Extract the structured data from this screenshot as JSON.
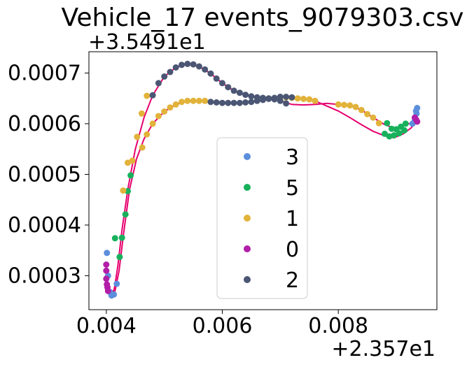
{
  "chart_data": {
    "type": "scatter",
    "title": "Vehicle_17 events_9079303.csv",
    "x_offset_label": "+2.357e1",
    "y_offset_label": "+3.5491e1",
    "xlabel": "",
    "ylabel": "",
    "xlim": [
      0.0037,
      0.0097
    ],
    "ylim": [
      0.000233,
      0.000742
    ],
    "xticks": [
      0.004,
      0.006,
      0.008
    ],
    "xtick_labels": [
      "0.004",
      "0.006",
      "0.008"
    ],
    "yticks": [
      0.0003,
      0.0004,
      0.0005,
      0.0006,
      0.0007
    ],
    "ytick_labels": [
      "0.0003",
      "0.0004",
      "0.0005",
      "0.0006",
      "0.0007"
    ],
    "legend_position": "lower-center",
    "track_color": "#e6006e",
    "series": [
      {
        "name": "3",
        "color": "#5b8fdc",
        "points": [
          [
            0.00401,
            0.000345
          ],
          [
            0.00403,
            0.0003
          ],
          [
            0.00406,
            0.000268
          ],
          [
            0.00409,
            0.000261
          ],
          [
            0.00413,
            0.000263
          ],
          [
            0.00418,
            0.000284
          ],
          [
            0.00928,
            0.0006
          ],
          [
            0.00932,
            0.000612
          ],
          [
            0.00934,
            0.000625
          ],
          [
            0.00936,
            0.000631
          ],
          [
            0.00935,
            0.00062
          ],
          [
            0.00932,
            0.000606
          ]
        ]
      },
      {
        "name": "5",
        "color": "#17b15c",
        "points": [
          [
            0.00415,
            0.000374
          ],
          [
            0.00423,
            0.000337
          ],
          [
            0.00427,
            0.000375
          ],
          [
            0.00433,
            0.000421
          ],
          [
            0.00437,
            0.000467
          ],
          [
            0.00442,
            0.000498
          ],
          [
            0.0088,
            0.00058
          ],
          [
            0.00888,
            0.000575
          ],
          [
            0.00896,
            0.000577
          ],
          [
            0.00905,
            0.000581
          ],
          [
            0.00914,
            0.000587
          ],
          [
            0.00884,
            0.000601
          ],
          [
            0.00892,
            0.00059
          ],
          [
            0.009,
            0.000589
          ],
          [
            0.00908,
            0.000594
          ],
          [
            0.00916,
            0.0006
          ]
        ]
      },
      {
        "name": "1",
        "color": "#e2b33a",
        "points": [
          [
            0.00429,
            0.000468
          ],
          [
            0.00437,
            0.000523
          ],
          [
            0.00445,
            0.000527
          ],
          [
            0.00453,
            0.000574
          ],
          [
            0.00461,
            0.00062
          ],
          [
            0.0047,
            0.000655
          ],
          [
            0.00462,
            0.000553
          ],
          [
            0.0047,
            0.000579
          ],
          [
            0.0048,
            0.0006
          ],
          [
            0.0049,
            0.000615
          ],
          [
            0.005,
            0.000624
          ],
          [
            0.0051,
            0.000632
          ],
          [
            0.0052,
            0.000638
          ],
          [
            0.0053,
            0.000643
          ],
          [
            0.0054,
            0.000645
          ],
          [
            0.0055,
            0.000645
          ],
          [
            0.0056,
            0.000645
          ],
          [
            0.0057,
            0.000645
          ],
          [
            0.0071,
            0.000652
          ],
          [
            0.0072,
            0.000651
          ],
          [
            0.0073,
            0.00065
          ],
          [
            0.0074,
            0.000649
          ],
          [
            0.0075,
            0.000648
          ],
          [
            0.0076,
            0.000645
          ],
          [
            0.008,
            0.000638
          ],
          [
            0.0081,
            0.000637
          ],
          [
            0.0082,
            0.000636
          ],
          [
            0.0083,
            0.000633
          ],
          [
            0.0084,
            0.000627
          ],
          [
            0.0085,
            0.000619
          ],
          [
            0.0086,
            0.000612
          ],
          [
            0.0087,
            0.000601
          ]
        ]
      },
      {
        "name": "0",
        "color": "#b21ea8",
        "points": [
          [
            0.004,
            0.000322
          ],
          [
            0.004,
            0.00031
          ],
          [
            0.004,
            0.000294
          ],
          [
            0.00401,
            0.000283
          ],
          [
            0.00402,
            0.000277
          ],
          [
            0.00403,
            0.00027
          ],
          [
            0.00932,
            0.000612
          ],
          [
            0.00934,
            0.000608
          ],
          [
            0.00936,
            0.000604
          ]
        ]
      },
      {
        "name": "2",
        "color": "#4a5673",
        "points": [
          [
            0.0048,
            0.000656
          ],
          [
            0.0049,
            0.00068
          ],
          [
            0.005,
            0.000693
          ],
          [
            0.0051,
            0.000702
          ],
          [
            0.0052,
            0.000711
          ],
          [
            0.0053,
            0.000716
          ],
          [
            0.0054,
            0.000718
          ],
          [
            0.0055,
            0.000717
          ],
          [
            0.0056,
            0.000713
          ],
          [
            0.0057,
            0.000707
          ],
          [
            0.0058,
            0.000699
          ],
          [
            0.0059,
            0.000689
          ],
          [
            0.006,
            0.00068
          ],
          [
            0.0061,
            0.000672
          ],
          [
            0.0062,
            0.000665
          ],
          [
            0.0063,
            0.000661
          ],
          [
            0.0064,
            0.000657
          ],
          [
            0.0065,
            0.000654
          ],
          [
            0.0066,
            0.000652
          ],
          [
            0.0067,
            0.000651
          ],
          [
            0.0068,
            0.00065
          ],
          [
            0.0069,
            0.000648
          ],
          [
            0.007,
            0.000645
          ],
          [
            0.0071,
            0.00064
          ],
          [
            0.0058,
            0.000643
          ],
          [
            0.0059,
            0.000642
          ],
          [
            0.006,
            0.000641
          ],
          [
            0.0061,
            0.000641
          ],
          [
            0.0062,
            0.000641
          ],
          [
            0.0063,
            0.000641
          ],
          [
            0.0064,
            0.000642
          ],
          [
            0.0065,
            0.000643
          ],
          [
            0.0066,
            0.000645
          ],
          [
            0.0067,
            0.000647
          ],
          [
            0.0068,
            0.000649
          ],
          [
            0.0069,
            0.000651
          ],
          [
            0.007,
            0.000653
          ],
          [
            0.0071,
            0.000653
          ],
          [
            0.0072,
            0.000652
          ]
        ]
      }
    ],
    "track_a": [
      [
        0.004,
        0.000322
      ],
      [
        0.00402,
        0.00028
      ],
      [
        0.00405,
        0.000264
      ],
      [
        0.00409,
        0.000261
      ],
      [
        0.00414,
        0.000275
      ],
      [
        0.0042,
        0.00032
      ],
      [
        0.00427,
        0.00039
      ],
      [
        0.00437,
        0.00047
      ],
      [
        0.0045,
        0.00055
      ],
      [
        0.00465,
        0.000612
      ],
      [
        0.0048,
        0.000656
      ],
      [
        0.005,
        0.000693
      ],
      [
        0.0052,
        0.000711
      ],
      [
        0.0054,
        0.000718
      ],
      [
        0.0056,
        0.000713
      ],
      [
        0.0058,
        0.000699
      ],
      [
        0.006,
        0.00068
      ],
      [
        0.0062,
        0.000665
      ],
      [
        0.0064,
        0.000657
      ],
      [
        0.0066,
        0.000652
      ],
      [
        0.0068,
        0.00065
      ],
      [
        0.007,
        0.000645
      ],
      [
        0.0072,
        0.000638
      ],
      [
        0.0074,
        0.000637
      ],
      [
        0.0076,
        0.000638
      ],
      [
        0.0078,
        0.00064
      ],
      [
        0.008,
        0.000638
      ],
      [
        0.0082,
        0.000636
      ],
      [
        0.0084,
        0.000627
      ],
      [
        0.0086,
        0.000612
      ],
      [
        0.0088,
        0.000598
      ],
      [
        0.009,
        0.00059
      ],
      [
        0.00916,
        0.000598
      ],
      [
        0.00928,
        0.000602
      ],
      [
        0.00934,
        0.000604
      ]
    ],
    "track_b": [
      [
        0.00409,
        0.000261
      ],
      [
        0.00415,
        0.00027
      ],
      [
        0.00422,
        0.00031
      ],
      [
        0.0043,
        0.000385
      ],
      [
        0.0044,
        0.00047
      ],
      [
        0.00452,
        0.00053
      ],
      [
        0.00465,
        0.00057
      ],
      [
        0.0048,
        0.0006
      ],
      [
        0.005,
        0.000624
      ],
      [
        0.0052,
        0.000638
      ],
      [
        0.0054,
        0.000645
      ],
      [
        0.0057,
        0.000645
      ],
      [
        0.006,
        0.000641
      ],
      [
        0.0064,
        0.000642
      ],
      [
        0.0068,
        0.000649
      ],
      [
        0.0071,
        0.000653
      ],
      [
        0.0074,
        0.00065
      ],
      [
        0.0076,
        0.000645
      ],
      [
        0.0078,
        0.000635
      ],
      [
        0.008,
        0.000625
      ],
      [
        0.0082,
        0.000612
      ],
      [
        0.0084,
        0.000598
      ],
      [
        0.0086,
        0.000585
      ],
      [
        0.0088,
        0.000576
      ],
      [
        0.00896,
        0.000572
      ],
      [
        0.00912,
        0.00058
      ],
      [
        0.00926,
        0.000592
      ],
      [
        0.00934,
        0.000605
      ]
    ]
  }
}
